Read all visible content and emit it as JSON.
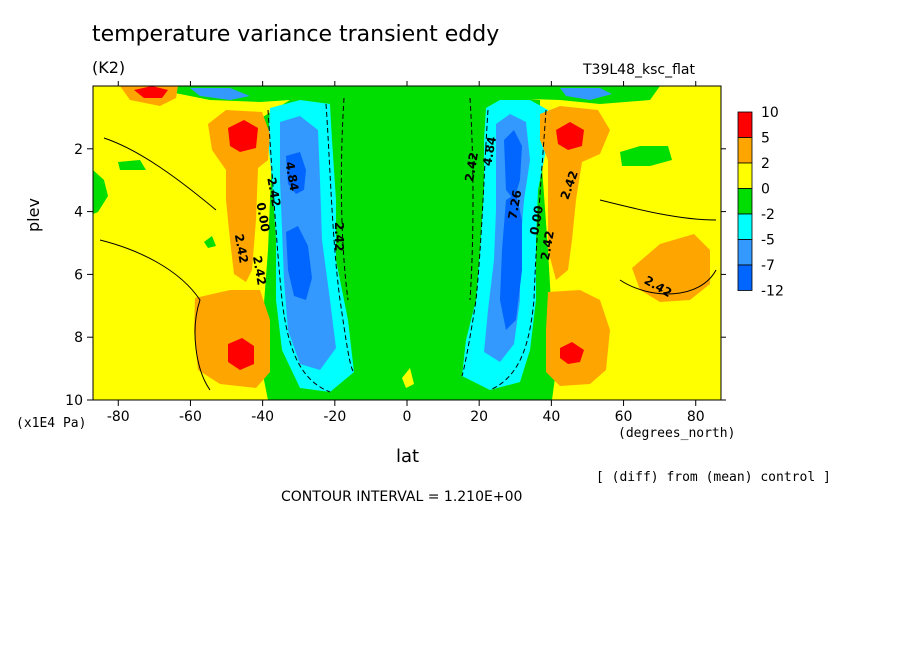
{
  "chart_data": {
    "type": "heatmap",
    "title": "temperature variance transient eddy",
    "units": "(K2)",
    "experiment": "T39L48_ksc_flat",
    "xlabel": "lat",
    "x_unit": "(degrees_north)",
    "ylabel": "plev",
    "y_unit": "(x1E4 Pa)",
    "note": "[ (diff) from (mean) control ]",
    "contour_interval": "CONTOUR INTERVAL = 1.210E+00",
    "xlim": [
      -87,
      87
    ],
    "ylim": [
      10,
      0
    ],
    "x_ticks": [
      -80,
      -60,
      -40,
      -20,
      0,
      20,
      40,
      60,
      80
    ],
    "y_ticks": [
      2,
      4,
      6,
      8,
      10
    ],
    "colorbar": {
      "levels": [
        "10",
        "5",
        "2",
        "0",
        "-2",
        "-5",
        "-7",
        "-12"
      ],
      "colors": [
        "#ff0000",
        "#ffa500",
        "#ffff00",
        "#00dd00",
        "#00ffff",
        "#3399ff",
        "#0066ff"
      ]
    },
    "colors": {
      "red": "#ff0000",
      "orange": "#ffa500",
      "yellow": "#ffff00",
      "green": "#00dd00",
      "cyan": "#00ffff",
      "lightblue": "#3399ff",
      "blue": "#0066ff"
    },
    "contour_labels": [
      {
        "text": "4.84",
        "lat": -33,
        "plev": 2.9,
        "rot": 80
      },
      {
        "text": "2.42",
        "lat": -38,
        "plev": 3.4,
        "rot": 80
      },
      {
        "text": "0.00",
        "lat": -41,
        "plev": 4.2,
        "rot": 80
      },
      {
        "text": "2.42",
        "lat": -47,
        "plev": 5.2,
        "rot": 80
      },
      {
        "text": "2.42",
        "lat": -42,
        "plev": 5.9,
        "rot": 80
      },
      {
        "text": "2.42",
        "lat": -20,
        "plev": 4.8,
        "rot": 90
      },
      {
        "text": "2.42",
        "lat": 19,
        "plev": 2.6,
        "rot": -80
      },
      {
        "text": "4.84",
        "lat": 24,
        "plev": 2.1,
        "rot": -80
      },
      {
        "text": "7.26",
        "lat": 31,
        "plev": 3.8,
        "rot": -80
      },
      {
        "text": "0.00",
        "lat": 37,
        "plev": 4.3,
        "rot": -80
      },
      {
        "text": "2.42",
        "lat": 40,
        "plev": 5.1,
        "rot": -80
      },
      {
        "text": "2.42",
        "lat": 46,
        "plev": 3.2,
        "rot": -70
      },
      {
        "text": "2.42",
        "lat": 69,
        "plev": 6.5,
        "rot": 30
      }
    ]
  }
}
